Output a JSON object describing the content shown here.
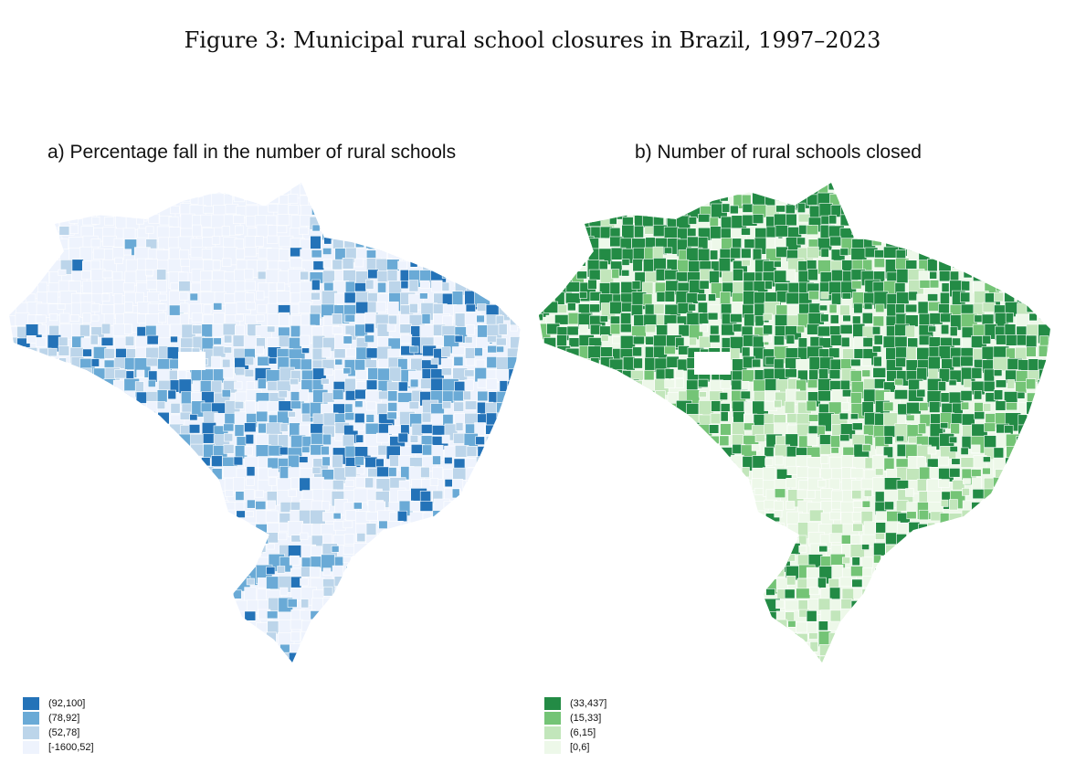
{
  "figure_title": "Figure 3: Municipal rural school closures in Brazil, 1997–2023",
  "panel_a": {
    "title": "a) Percentage fall in the number of rural schools",
    "legend": [
      {
        "label": "(92,100]",
        "color": "#2473b8"
      },
      {
        "label": "(78,92]",
        "color": "#6aaad6"
      },
      {
        "label": "(52,78]",
        "color": "#bcd5ea"
      },
      {
        "label": "[-1600,52]",
        "color": "#eef3fd"
      }
    ]
  },
  "panel_b": {
    "title": "b) Number of rural schools closed",
    "legend": [
      {
        "label": "(33,437]",
        "color": "#238b45"
      },
      {
        "label": "(15,33]",
        "color": "#74c476"
      },
      {
        "label": "(6,15]",
        "color": "#c2e6bb"
      },
      {
        "label": "[0,6]",
        "color": "#edf8e9"
      }
    ]
  }
}
